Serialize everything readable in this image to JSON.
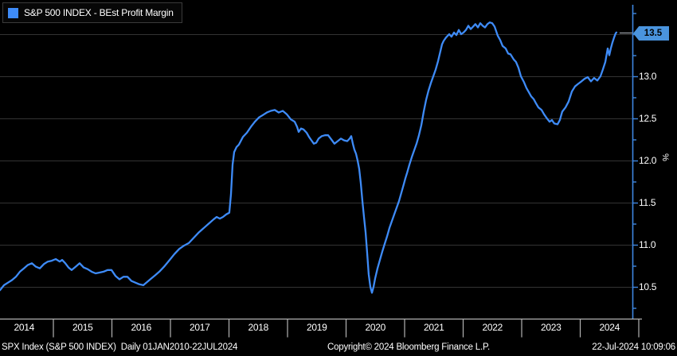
{
  "legend": {
    "label": "S&P 500 INDEX - BEst Profit Margin",
    "swatch_color": "#3e8bf7"
  },
  "axis_tag": {
    "value": "13.5",
    "color": "#4a94de"
  },
  "y_axis": {
    "unit": "%",
    "labels": [
      "13.5",
      "13.0",
      "12.5",
      "12.0",
      "11.5",
      "11.0",
      "10.5"
    ]
  },
  "x_axis": {
    "years": [
      "2014",
      "2015",
      "2016",
      "2017",
      "2018",
      "2019",
      "2020",
      "2021",
      "2022",
      "2023",
      "2024"
    ]
  },
  "footer": {
    "left": "SPX Index (S&P 500 INDEX)  Daily 01JAN2010-22JUL2024",
    "copyright": "Copyright© 2024 Bloomberg Finance L.P.",
    "timestamp": "22-Jul-2024 10:09:06"
  },
  "chart_data": {
    "type": "line",
    "title": "S&P 500 INDEX - BEst Profit Margin",
    "ylabel": "%",
    "ylim": [
      10.2,
      13.85
    ],
    "xlim": [
      2014.09,
      2024.89
    ],
    "y_ticks": [
      13.5,
      13.0,
      12.5,
      12.0,
      11.5,
      11.0,
      10.5
    ],
    "minor_tick_step": 0.25,
    "grid": true,
    "legend_position": "top-left",
    "last_value": 13.5,
    "colors": {
      "line": "#3e8bf7",
      "grid": "#333333",
      "axis": "#3e86e0",
      "strip": "#b3b3b3",
      "leader": "#9aa0a6"
    },
    "series": [
      {
        "name": "S&P 500 INDEX - BEst Profit Margin",
        "color": "#3e8bf7",
        "points": [
          [
            2014.088,
            10.46
          ],
          [
            2014.156,
            10.52
          ],
          [
            2014.224,
            10.55
          ],
          [
            2014.292,
            10.58
          ],
          [
            2014.36,
            10.62
          ],
          [
            2014.428,
            10.68
          ],
          [
            2014.497,
            10.72
          ],
          [
            2014.565,
            10.76
          ],
          [
            2014.633,
            10.78
          ],
          [
            2014.701,
            10.74
          ],
          [
            2014.769,
            10.72
          ],
          [
            2014.837,
            10.77
          ],
          [
            2014.905,
            10.8
          ],
          [
            2014.973,
            10.81
          ],
          [
            2015.041,
            10.83
          ],
          [
            2015.109,
            10.8
          ],
          [
            2015.15,
            10.82
          ],
          [
            2015.204,
            10.78
          ],
          [
            2015.258,
            10.73
          ],
          [
            2015.313,
            10.7
          ],
          [
            2015.381,
            10.74
          ],
          [
            2015.449,
            10.78
          ],
          [
            2015.517,
            10.73
          ],
          [
            2015.585,
            10.71
          ],
          [
            2015.653,
            10.68
          ],
          [
            2015.721,
            10.66
          ],
          [
            2015.789,
            10.67
          ],
          [
            2015.857,
            10.68
          ],
          [
            2015.925,
            10.7
          ],
          [
            2015.993,
            10.7
          ],
          [
            2016.061,
            10.63
          ],
          [
            2016.129,
            10.59
          ],
          [
            2016.197,
            10.62
          ],
          [
            2016.265,
            10.62
          ],
          [
            2016.333,
            10.57
          ],
          [
            2016.401,
            10.55
          ],
          [
            2016.469,
            10.53
          ],
          [
            2016.537,
            10.52
          ],
          [
            2016.605,
            10.56
          ],
          [
            2016.673,
            10.6
          ],
          [
            2016.741,
            10.64
          ],
          [
            2016.809,
            10.68
          ],
          [
            2016.891,
            10.74
          ],
          [
            2016.986,
            10.82
          ],
          [
            2017.068,
            10.89
          ],
          [
            2017.149,
            10.95
          ],
          [
            2017.231,
            10.99
          ],
          [
            2017.313,
            11.02
          ],
          [
            2017.394,
            11.08
          ],
          [
            2017.49,
            11.15
          ],
          [
            2017.571,
            11.2
          ],
          [
            2017.653,
            11.25
          ],
          [
            2017.734,
            11.3
          ],
          [
            2017.789,
            11.33
          ],
          [
            2017.843,
            11.31
          ],
          [
            2017.898,
            11.33
          ],
          [
            2017.952,
            11.36
          ],
          [
            2018.006,
            11.38
          ],
          [
            2018.034,
            11.6
          ],
          [
            2018.061,
            11.95
          ],
          [
            2018.088,
            12.1
          ],
          [
            2018.129,
            12.16
          ],
          [
            2018.17,
            12.19
          ],
          [
            2018.238,
            12.28
          ],
          [
            2018.306,
            12.33
          ],
          [
            2018.374,
            12.4
          ],
          [
            2018.442,
            12.46
          ],
          [
            2018.51,
            12.51
          ],
          [
            2018.578,
            12.54
          ],
          [
            2018.646,
            12.57
          ],
          [
            2018.714,
            12.59
          ],
          [
            2018.782,
            12.6
          ],
          [
            2018.85,
            12.57
          ],
          [
            2018.918,
            12.59
          ],
          [
            2018.986,
            12.55
          ],
          [
            2019.054,
            12.49
          ],
          [
            2019.122,
            12.46
          ],
          [
            2019.163,
            12.4
          ],
          [
            2019.19,
            12.34
          ],
          [
            2019.231,
            12.38
          ],
          [
            2019.272,
            12.37
          ],
          [
            2019.326,
            12.33
          ],
          [
            2019.367,
            12.28
          ],
          [
            2019.408,
            12.24
          ],
          [
            2019.449,
            12.2
          ],
          [
            2019.49,
            12.21
          ],
          [
            2019.53,
            12.26
          ],
          [
            2019.585,
            12.29
          ],
          [
            2019.639,
            12.3
          ],
          [
            2019.694,
            12.3
          ],
          [
            2019.748,
            12.25
          ],
          [
            2019.802,
            12.2
          ],
          [
            2019.857,
            12.23
          ],
          [
            2019.911,
            12.26
          ],
          [
            2019.966,
            12.24
          ],
          [
            2020.02,
            12.23
          ],
          [
            2020.061,
            12.26
          ],
          [
            2020.088,
            12.29
          ],
          [
            2020.115,
            12.2
          ],
          [
            2020.142,
            12.13
          ],
          [
            2020.17,
            12.08
          ],
          [
            2020.197,
            12.0
          ],
          [
            2020.224,
            11.9
          ],
          [
            2020.251,
            11.73
          ],
          [
            2020.279,
            11.52
          ],
          [
            2020.306,
            11.33
          ],
          [
            2020.333,
            11.15
          ],
          [
            2020.36,
            10.9
          ],
          [
            2020.387,
            10.65
          ],
          [
            2020.415,
            10.5
          ],
          [
            2020.442,
            10.43
          ],
          [
            2020.469,
            10.5
          ],
          [
            2020.496,
            10.6
          ],
          [
            2020.537,
            10.72
          ],
          [
            2020.578,
            10.82
          ],
          [
            2020.619,
            10.92
          ],
          [
            2020.66,
            11.01
          ],
          [
            2020.7,
            11.1
          ],
          [
            2020.741,
            11.2
          ],
          [
            2020.782,
            11.28
          ],
          [
            2020.823,
            11.36
          ],
          [
            2020.864,
            11.44
          ],
          [
            2020.905,
            11.52
          ],
          [
            2020.945,
            11.62
          ],
          [
            2020.986,
            11.72
          ],
          [
            2021.013,
            11.79
          ],
          [
            2021.041,
            11.85
          ],
          [
            2021.081,
            11.95
          ],
          [
            2021.122,
            12.04
          ],
          [
            2021.163,
            12.12
          ],
          [
            2021.204,
            12.2
          ],
          [
            2021.245,
            12.3
          ],
          [
            2021.285,
            12.42
          ],
          [
            2021.326,
            12.58
          ],
          [
            2021.367,
            12.72
          ],
          [
            2021.408,
            12.83
          ],
          [
            2021.449,
            12.92
          ],
          [
            2021.49,
            13.0
          ],
          [
            2021.53,
            13.08
          ],
          [
            2021.571,
            13.18
          ],
          [
            2021.612,
            13.3
          ],
          [
            2021.639,
            13.38
          ],
          [
            2021.666,
            13.42
          ],
          [
            2021.707,
            13.46
          ],
          [
            2021.762,
            13.5
          ],
          [
            2021.802,
            13.47
          ],
          [
            2021.843,
            13.52
          ],
          [
            2021.884,
            13.49
          ],
          [
            2021.925,
            13.55
          ],
          [
            2021.966,
            13.5
          ],
          [
            2022.006,
            13.52
          ],
          [
            2022.047,
            13.55
          ],
          [
            2022.088,
            13.6
          ],
          [
            2022.129,
            13.56
          ],
          [
            2022.17,
            13.59
          ],
          [
            2022.21,
            13.62
          ],
          [
            2022.251,
            13.58
          ],
          [
            2022.292,
            13.63
          ],
          [
            2022.333,
            13.6
          ],
          [
            2022.374,
            13.58
          ],
          [
            2022.415,
            13.62
          ],
          [
            2022.455,
            13.64
          ],
          [
            2022.496,
            13.63
          ],
          [
            2022.537,
            13.59
          ],
          [
            2022.592,
            13.48
          ],
          [
            2022.632,
            13.43
          ],
          [
            2022.673,
            13.36
          ],
          [
            2022.727,
            13.33
          ],
          [
            2022.768,
            13.27
          ],
          [
            2022.809,
            13.26
          ],
          [
            2022.864,
            13.2
          ],
          [
            2022.904,
            13.17
          ],
          [
            2022.945,
            13.1
          ],
          [
            2022.986,
            13.0
          ],
          [
            2023.04,
            12.93
          ],
          [
            2023.081,
            12.86
          ],
          [
            2023.122,
            12.81
          ],
          [
            2023.163,
            12.76
          ],
          [
            2023.204,
            12.73
          ],
          [
            2023.244,
            12.68
          ],
          [
            2023.285,
            12.63
          ],
          [
            2023.34,
            12.6
          ],
          [
            2023.381,
            12.55
          ],
          [
            2023.421,
            12.51
          ],
          [
            2023.476,
            12.46
          ],
          [
            2023.517,
            12.48
          ],
          [
            2023.557,
            12.44
          ],
          [
            2023.612,
            12.43
          ],
          [
            2023.652,
            12.48
          ],
          [
            2023.693,
            12.58
          ],
          [
            2023.748,
            12.63
          ],
          [
            2023.802,
            12.7
          ],
          [
            2023.857,
            12.82
          ],
          [
            2023.911,
            12.88
          ],
          [
            2023.965,
            12.91
          ],
          [
            2024.02,
            12.94
          ],
          [
            2024.074,
            12.97
          ],
          [
            2024.128,
            12.99
          ],
          [
            2024.183,
            12.94
          ],
          [
            2024.237,
            12.98
          ],
          [
            2024.292,
            12.95
          ],
          [
            2024.346,
            13.0
          ],
          [
            2024.387,
            13.08
          ],
          [
            2024.428,
            13.17
          ],
          [
            2024.469,
            13.33
          ],
          [
            2024.496,
            13.25
          ],
          [
            2024.523,
            13.33
          ],
          [
            2024.55,
            13.4
          ],
          [
            2024.578,
            13.46
          ],
          [
            2024.605,
            13.51
          ],
          [
            2024.618,
            13.52
          ]
        ]
      }
    ]
  }
}
